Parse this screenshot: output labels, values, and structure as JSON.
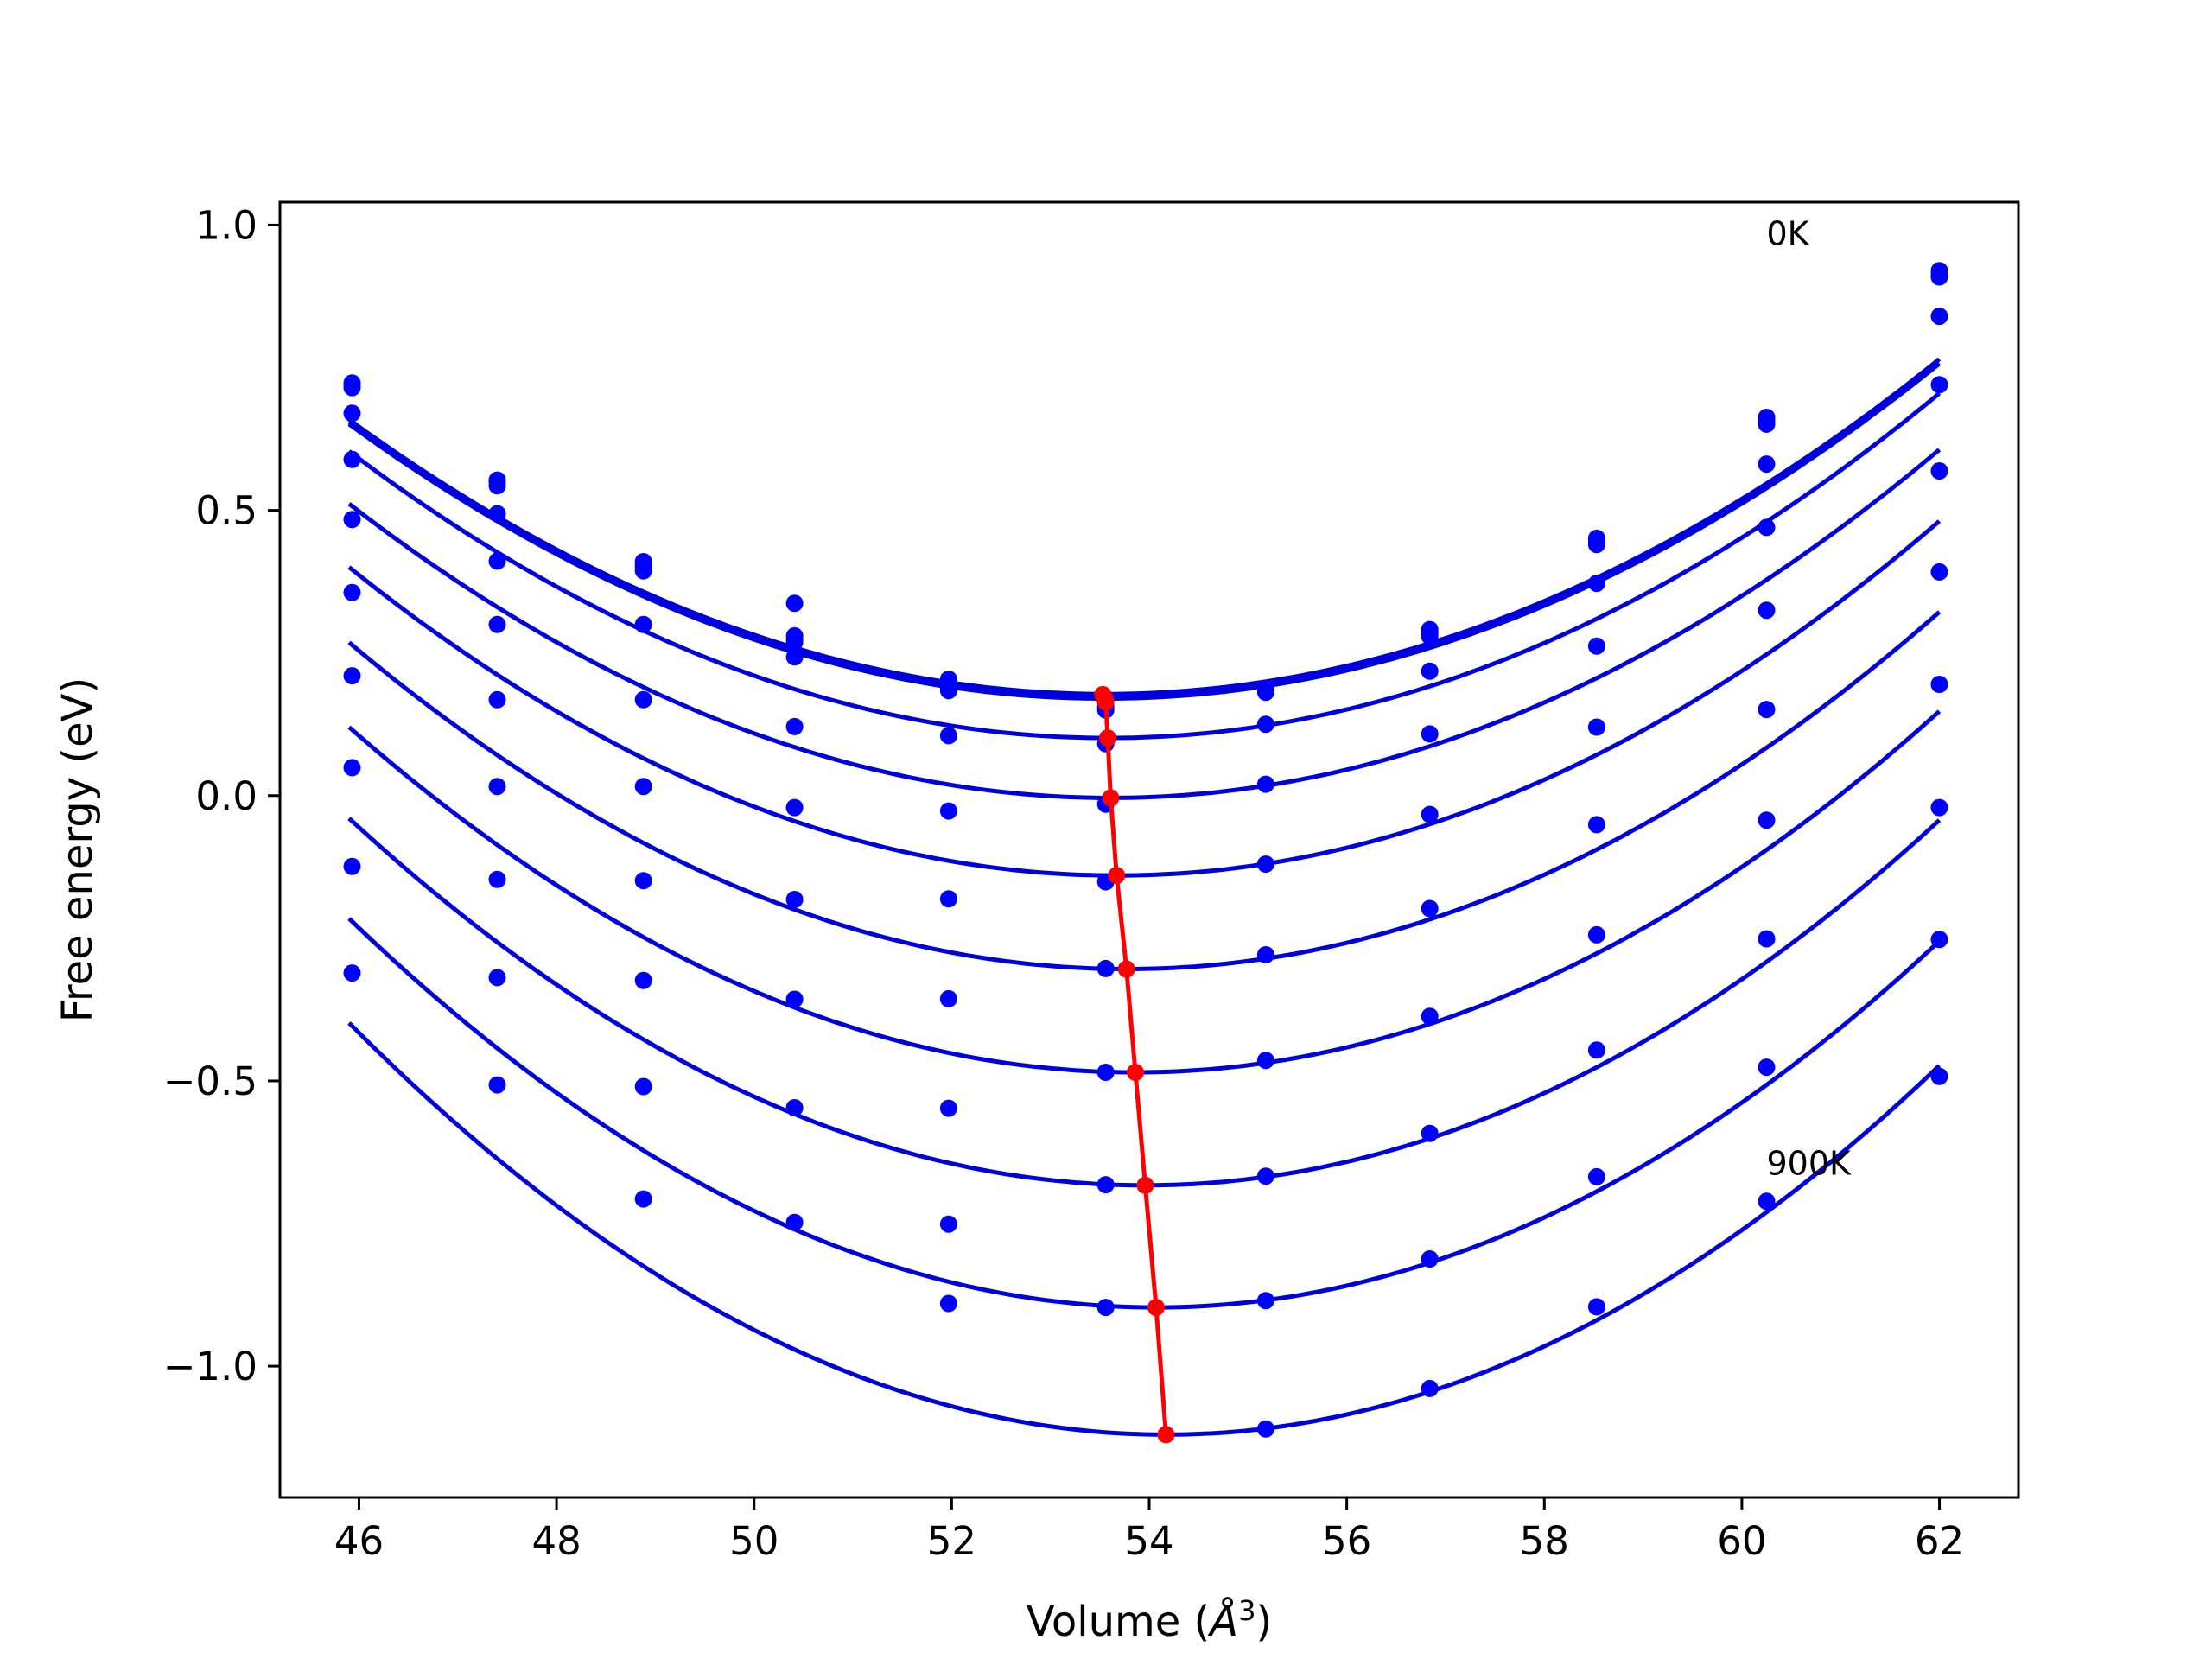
{
  "chart_data": {
    "type": "scatter",
    "title": "",
    "xlabel": "Volume (Å³)",
    "xlabel_parts": [
      "Volume (",
      "Å",
      "3",
      ")"
    ],
    "ylabel": "Free energy (eV)",
    "xlim": [
      45.2,
      62.8
    ],
    "ylim": [
      -1.23,
      1.04
    ],
    "xticks": [
      46,
      48,
      50,
      52,
      54,
      56,
      58,
      60,
      62
    ],
    "xtick_labels": [
      "46",
      "48",
      "50",
      "52",
      "54",
      "56",
      "58",
      "60",
      "62"
    ],
    "yticks": [
      1.0,
      0.5,
      0.0,
      -0.5,
      -1.0
    ],
    "ytick_labels": [
      "1.0",
      "0.5",
      "0.0",
      "−0.5",
      "−1.0"
    ],
    "grid": false,
    "annotations": [
      {
        "text": "0K",
        "x": 60.25,
        "y": 0.985
      },
      {
        "text": "900K",
        "x": 60.25,
        "y": -0.645
      }
    ],
    "colors": {
      "data": "#0000ff",
      "fit": "#0000dd",
      "minimum": "#ff0000"
    },
    "x": [
      45.93,
      47.4,
      48.88,
      50.41,
      51.97,
      53.56,
      55.18,
      56.84,
      58.53,
      60.25,
      62.0
    ],
    "series": [
      {
        "values": [
          0.723,
          0.553,
          0.404,
          0.28,
          0.195,
          0.17,
          0.187,
          0.291,
          0.451,
          0.663,
          0.92
        ]
      },
      {
        "values": [
          0.72,
          0.549,
          0.4,
          0.275,
          0.19,
          0.165,
          0.183,
          0.285,
          0.445,
          0.657,
          0.913
        ]
      },
      {
        "values": [
          0.715,
          0.543,
          0.394,
          0.269,
          0.184,
          0.156,
          0.181,
          0.279,
          0.44,
          0.651,
          0.909
        ]
      },
      {
        "values": [
          0.67,
          0.494,
          0.41,
          0.337,
          0.204,
          0.15,
          0.125,
          0.218,
          0.372,
          0.581,
          0.84
        ]
      },
      {
        "values": [
          0.589,
          0.411,
          0.3,
          0.243,
          0.105,
          0.091,
          0.02,
          0.108,
          0.262,
          0.47,
          0.72
        ]
      },
      {
        "values": [
          0.484,
          0.3,
          0.168,
          0.121,
          -0.027,
          -0.015,
          -0.12,
          -0.033,
          0.12,
          0.325,
          0.569
        ]
      },
      {
        "values": [
          0.356,
          0.168,
          0.016,
          -0.021,
          -0.181,
          -0.151,
          -0.279,
          -0.198,
          -0.051,
          0.151,
          0.392
        ]
      },
      {
        "values": [
          0.21,
          0.016,
          -0.149,
          -0.182,
          -0.356,
          -0.303,
          -0.464,
          -0.387,
          -0.244,
          -0.043,
          0.195
        ]
      },
      {
        "values": [
          0.049,
          -0.147,
          -0.324,
          -0.357,
          -0.548,
          -0.485,
          -0.667,
          -0.592,
          -0.446,
          -0.251,
          -0.021
        ]
      },
      {
        "values": [
          -0.124,
          -0.319,
          -0.51,
          -0.547,
          -0.751,
          -0.682,
          -0.885,
          -0.812,
          -0.668,
          -0.476,
          -0.252
        ]
      },
      {
        "values": [
          -0.311,
          -0.507,
          -0.707,
          -0.748,
          -0.89,
          -0.897,
          -1.11,
          -1.039,
          -0.896,
          -0.711,
          -0.492
        ]
      }
    ],
    "fits": [
      {
        "x0": 53.55,
        "y0": 0.17,
        "k": 0.00822
      },
      {
        "x0": 53.55,
        "y0": 0.178,
        "k": 0.00822
      },
      {
        "x0": 53.56,
        "y0": 0.172,
        "k": 0.00822
      },
      {
        "x0": 53.58,
        "y0": 0.101,
        "k": 0.00852
      },
      {
        "x0": 53.61,
        "y0": -0.004,
        "k": 0.00867
      },
      {
        "x0": 53.67,
        "y0": -0.14,
        "k": 0.00895
      },
      {
        "x0": 53.77,
        "y0": -0.304,
        "k": 0.00924
      },
      {
        "x0": 53.86,
        "y0": -0.485,
        "k": 0.00955
      },
      {
        "x0": 53.96,
        "y0": -0.683,
        "k": 0.0099
      },
      {
        "x0": 54.07,
        "y0": -0.897,
        "k": 0.01021
      },
      {
        "x0": 54.17,
        "y0": -1.12,
        "k": 0.01055
      }
    ],
    "fit_x_range": [
      45.9,
      62.0
    ],
    "minimum_line": {
      "x": [
        53.53,
        53.55,
        53.56,
        53.58,
        53.61,
        53.67,
        53.77,
        53.86,
        53.96,
        54.07,
        54.17
      ],
      "y": [
        0.177,
        0.17,
        0.164,
        0.101,
        -0.004,
        -0.14,
        -0.304,
        -0.485,
        -0.683,
        -0.897,
        -1.12
      ]
    }
  }
}
